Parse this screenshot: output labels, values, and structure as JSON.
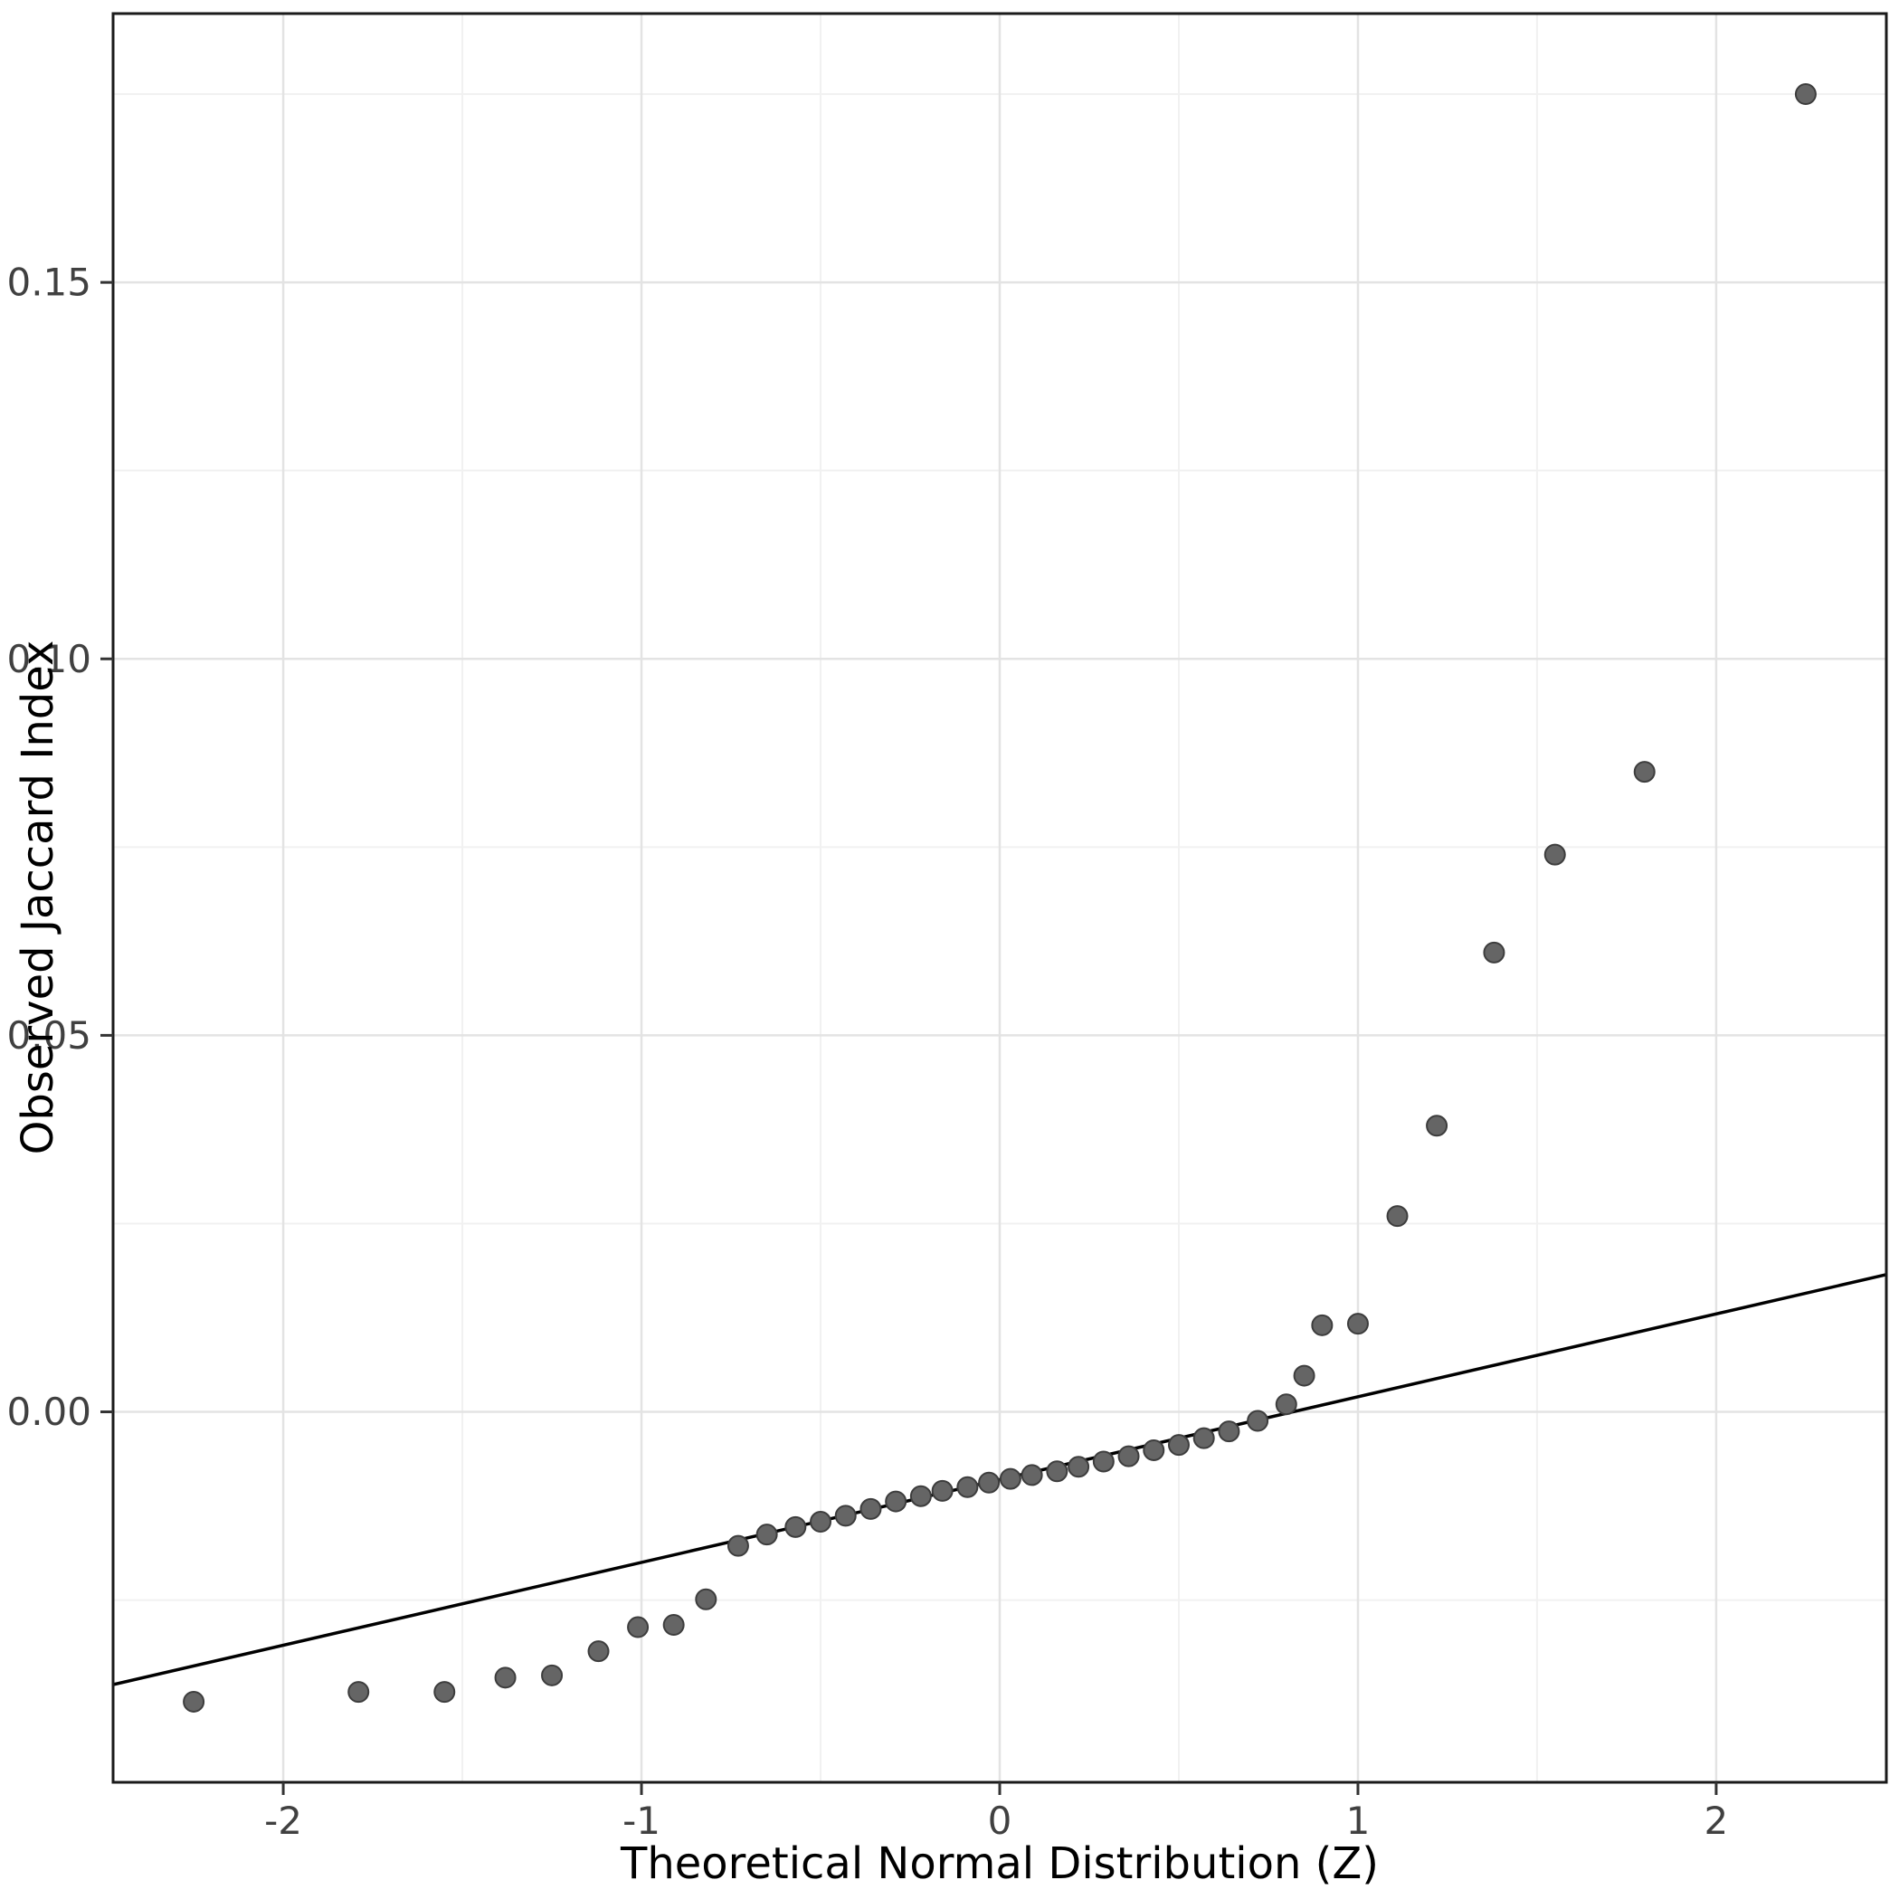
{
  "chart_data": {
    "type": "scatter",
    "title": "",
    "xlabel": "Theoretical Normal Distribution (Z)",
    "ylabel": "Observed Jaccard Index",
    "xlim": [
      -2.475,
      2.475
    ],
    "ylim": [
      -0.0492,
      0.1857
    ],
    "grid": true,
    "legend_position": "none",
    "x_ticks": [
      -2,
      -1,
      0,
      1,
      2
    ],
    "x_tick_labels": [
      "-2",
      "-1",
      "0",
      "1",
      "2"
    ],
    "x_minor_ticks": [
      -1.5,
      -0.5,
      0.5,
      1.5
    ],
    "y_ticks": [
      0.0,
      0.05,
      0.1,
      0.15
    ],
    "y_tick_labels": [
      "0.00",
      "0.05",
      "0.10",
      "0.15"
    ],
    "y_minor_ticks": [
      -0.025,
      0.025,
      0.075,
      0.125,
      0.175
    ],
    "reference_line": {
      "slope": 0.011,
      "intercept": -0.009
    },
    "points": [
      [
        -2.25,
        -0.0385
      ],
      [
        -1.79,
        -0.0372
      ],
      [
        -1.55,
        -0.0372
      ],
      [
        -1.38,
        -0.0353
      ],
      [
        -1.25,
        -0.035
      ],
      [
        -1.12,
        -0.0318
      ],
      [
        -1.01,
        -0.0286
      ],
      [
        -0.91,
        -0.0283
      ],
      [
        -0.82,
        -0.0249
      ],
      [
        -0.73,
        -0.0178
      ],
      [
        -0.65,
        -0.0163
      ],
      [
        -0.57,
        -0.0153
      ],
      [
        -0.5,
        -0.0146
      ],
      [
        -0.43,
        -0.0138
      ],
      [
        -0.36,
        -0.0129
      ],
      [
        -0.29,
        -0.0119
      ],
      [
        -0.22,
        -0.0112
      ],
      [
        -0.16,
        -0.0105
      ],
      [
        -0.09,
        -0.01
      ],
      [
        -0.03,
        -0.0094
      ],
      [
        0.03,
        -0.0089
      ],
      [
        0.09,
        -0.0084
      ],
      [
        0.16,
        -0.0079
      ],
      [
        0.22,
        -0.0073
      ],
      [
        0.29,
        -0.0066
      ],
      [
        0.36,
        -0.0059
      ],
      [
        0.43,
        -0.0051
      ],
      [
        0.5,
        -0.0044
      ],
      [
        0.57,
        -0.0035
      ],
      [
        0.64,
        -0.0026
      ],
      [
        0.72,
        -0.0012
      ],
      [
        0.8,
        0.001
      ],
      [
        0.85,
        0.0048
      ],
      [
        0.9,
        0.0115
      ],
      [
        1.0,
        0.0117
      ],
      [
        1.11,
        0.026
      ],
      [
        1.22,
        0.038
      ],
      [
        1.38,
        0.061
      ],
      [
        1.55,
        0.074
      ],
      [
        1.8,
        0.085
      ],
      [
        2.25,
        0.175
      ]
    ]
  },
  "style": {
    "background": "#ffffff",
    "panel_background": "#ffffff",
    "grid_major": "#e3e3e3",
    "grid_minor": "#f1f1f1",
    "panel_border": "#1a1a1a",
    "reference_line_color": "#000000",
    "point_fill": "#656565",
    "point_stroke": "#3d3d3d",
    "tick_color": "#333333",
    "tick_label_color": "#404040",
    "axis_title_color": "#000000"
  }
}
